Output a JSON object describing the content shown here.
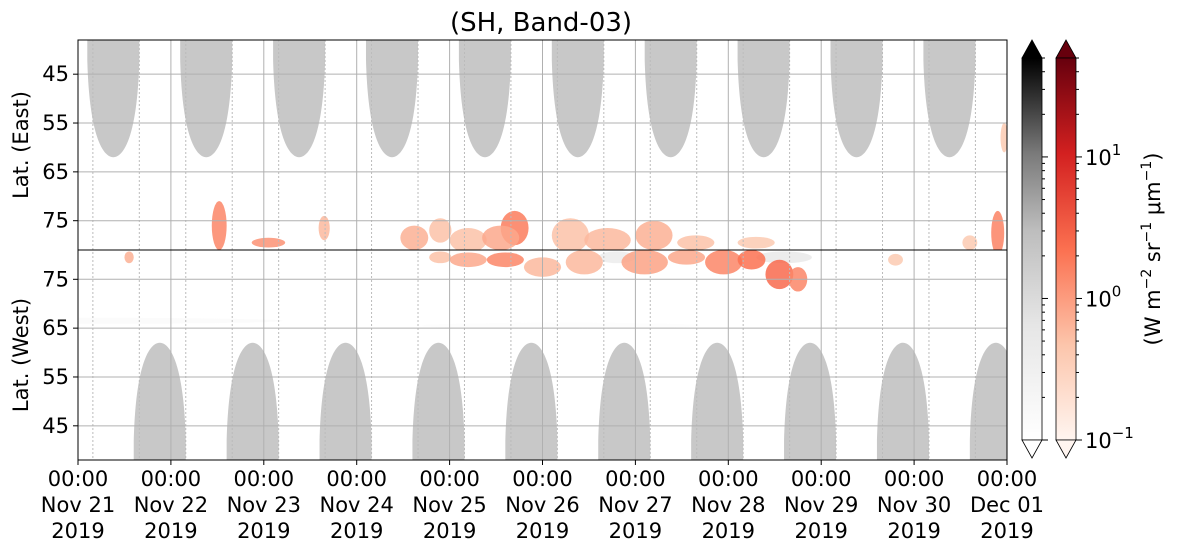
{
  "chart_data": {
    "type": "heatmap",
    "title": "(SH, Band-03)",
    "panels": [
      {
        "name": "east",
        "ylabel": "Lat. (East)",
        "yticks": [
          "45",
          "55",
          "65",
          "75"
        ],
        "y_tick_values": [
          45,
          55,
          65,
          75
        ],
        "ylim": [
          38,
          81
        ],
        "y_orientation": "increasing-downward"
      },
      {
        "name": "west",
        "ylabel": "Lat. (West)",
        "yticks": [
          "75",
          "65",
          "55",
          "45"
        ],
        "y_tick_values": [
          75,
          65,
          55,
          45
        ],
        "ylim": [
          81,
          38
        ],
        "y_orientation": "increasing-upward"
      }
    ],
    "x_ticks": [
      [
        "00:00",
        "Nov 21",
        "2019"
      ],
      [
        "00:00",
        "Nov 22",
        "2019"
      ],
      [
        "00:00",
        "Nov 23",
        "2019"
      ],
      [
        "00:00",
        "Nov 24",
        "2019"
      ],
      [
        "00:00",
        "Nov 25",
        "2019"
      ],
      [
        "00:00",
        "Nov 26",
        "2019"
      ],
      [
        "00:00",
        "Nov 27",
        "2019"
      ],
      [
        "00:00",
        "Nov 28",
        "2019"
      ],
      [
        "00:00",
        "Nov 29",
        "2019"
      ],
      [
        "00:00",
        "Nov 30",
        "2019"
      ],
      [
        "00:00",
        "Dec 01",
        "2019"
      ]
    ],
    "x_range_days": [
      0,
      10
    ],
    "grid": true,
    "no_data_polar_day_gray": {
      "east_centers_days": [
        0.38,
        1.38,
        2.38,
        3.38,
        4.38,
        5.38,
        6.38,
        7.38,
        8.38,
        9.38
      ],
      "west_centers_days": [
        0.88,
        1.88,
        2.88,
        3.88,
        4.88,
        5.88,
        6.88,
        7.88,
        8.88,
        9.88
      ],
      "lat_extent": 62,
      "color": "#c8c8c8"
    },
    "colorbars": [
      {
        "name": "gray",
        "colormap": "Greys",
        "scale": "log",
        "range": [
          0.1,
          50
        ],
        "extend": "both"
      },
      {
        "name": "red",
        "colormap": "Reds",
        "scale": "log",
        "range": [
          0.1,
          50
        ],
        "extend": "both",
        "tick_labels": [
          {
            "base": "10",
            "exp": "1",
            "value": 10
          },
          {
            "base": "10",
            "exp": "0",
            "value": 1
          },
          {
            "base": "10",
            "exp": "−1",
            "value": 0.1
          }
        ],
        "label_parts": [
          "(W m",
          "−2",
          " sr",
          "−1",
          " μm",
          "−1",
          ")"
        ]
      }
    ],
    "emission_blobs": [
      {
        "panel": "east",
        "day": 1.52,
        "lat": 76,
        "dday": 0.08,
        "dlat": 5,
        "value": 1.5
      },
      {
        "panel": "east",
        "day": 2.05,
        "lat": 79.5,
        "dday": 0.18,
        "dlat": 1.0,
        "value": 1.2
      },
      {
        "panel": "east",
        "day": 2.65,
        "lat": 76.5,
        "dday": 0.06,
        "dlat": 2.5,
        "value": 0.6
      },
      {
        "panel": "east",
        "day": 3.62,
        "lat": 78.5,
        "dday": 0.15,
        "dlat": 2.5,
        "value": 0.7
      },
      {
        "panel": "east",
        "day": 3.9,
        "lat": 77,
        "dday": 0.12,
        "dlat": 2.5,
        "value": 0.5
      },
      {
        "panel": "east",
        "day": 4.2,
        "lat": 79,
        "dday": 0.2,
        "dlat": 2.5,
        "value": 0.5
      },
      {
        "panel": "east",
        "day": 4.7,
        "lat": 76.5,
        "dday": 0.15,
        "dlat": 3.5,
        "value": 1.8
      },
      {
        "panel": "east",
        "day": 4.55,
        "lat": 78.5,
        "dday": 0.2,
        "dlat": 2.5,
        "value": 0.8
      },
      {
        "panel": "east",
        "day": 5.3,
        "lat": 78,
        "dday": 0.2,
        "dlat": 3.5,
        "value": 0.5
      },
      {
        "panel": "east",
        "day": 5.7,
        "lat": 79,
        "dday": 0.25,
        "dlat": 2.5,
        "value": 0.6
      },
      {
        "panel": "east",
        "day": 6.2,
        "lat": 78,
        "dday": 0.2,
        "dlat": 3.0,
        "value": 0.7
      },
      {
        "panel": "east",
        "day": 6.65,
        "lat": 79.5,
        "dday": 0.2,
        "dlat": 1.5,
        "value": 0.5
      },
      {
        "panel": "east",
        "day": 7.3,
        "lat": 79.5,
        "dday": 0.2,
        "dlat": 1.2,
        "value": 0.4
      },
      {
        "panel": "east",
        "day": 9.9,
        "lat": 77.5,
        "dday": 0.07,
        "dlat": 4.5,
        "value": 1.6
      },
      {
        "panel": "east",
        "day": 9.6,
        "lat": 79.5,
        "dday": 0.08,
        "dlat": 1.5,
        "value": 0.4
      },
      {
        "panel": "east",
        "day": 9.97,
        "lat": 58,
        "dday": 0.04,
        "dlat": 3.0,
        "value": 0.4
      },
      {
        "panel": "west",
        "day": 0.55,
        "lat": 79.5,
        "dday": 0.05,
        "dlat": 1.2,
        "value": 0.7
      },
      {
        "panel": "west",
        "day": 3.9,
        "lat": 79.5,
        "dday": 0.12,
        "dlat": 1.2,
        "value": 0.5
      },
      {
        "panel": "west",
        "day": 4.2,
        "lat": 79,
        "dday": 0.2,
        "dlat": 1.5,
        "value": 0.8
      },
      {
        "panel": "west",
        "day": 4.6,
        "lat": 79,
        "dday": 0.2,
        "dlat": 1.5,
        "value": 1.5
      },
      {
        "panel": "west",
        "day": 5.0,
        "lat": 77.5,
        "dday": 0.2,
        "dlat": 2.0,
        "value": 0.6
      },
      {
        "panel": "west",
        "day": 5.45,
        "lat": 78.5,
        "dday": 0.2,
        "dlat": 2.5,
        "value": 0.6
      },
      {
        "panel": "west",
        "day": 6.1,
        "lat": 78.5,
        "dday": 0.25,
        "dlat": 2.5,
        "value": 0.9
      },
      {
        "panel": "west",
        "day": 6.55,
        "lat": 79.5,
        "dday": 0.2,
        "dlat": 1.5,
        "value": 0.8
      },
      {
        "panel": "west",
        "day": 6.95,
        "lat": 78.5,
        "dday": 0.2,
        "dlat": 2.5,
        "value": 1.5
      },
      {
        "panel": "west",
        "day": 7.25,
        "lat": 79,
        "dday": 0.15,
        "dlat": 2.0,
        "value": 2.2
      },
      {
        "panel": "west",
        "day": 7.55,
        "lat": 76,
        "dday": 0.15,
        "dlat": 3.0,
        "value": 2.5
      },
      {
        "panel": "west",
        "day": 7.75,
        "lat": 75,
        "dday": 0.1,
        "dlat": 2.5,
        "value": 1.5
      },
      {
        "panel": "west",
        "day": 8.8,
        "lat": 79,
        "dday": 0.08,
        "dlat": 1.2,
        "value": 0.4
      }
    ],
    "gray_patches": [
      {
        "panel": "west",
        "day": 5.8,
        "lat": 79.5,
        "dday": 0.2,
        "dlat": 1.2,
        "value": 0.4
      },
      {
        "panel": "west",
        "day": 7.6,
        "lat": 79.5,
        "dday": 0.3,
        "dlat": 1.2,
        "value": 0.5
      },
      {
        "panel": "west",
        "day": 0.2,
        "lat": 66.5,
        "dday": 2.0,
        "dlat": 0.6,
        "value": 0.15
      },
      {
        "panel": "west",
        "day": 5.2,
        "lat": 65.5,
        "dday": 1.5,
        "dlat": 0.6,
        "value": 0.12
      }
    ]
  }
}
